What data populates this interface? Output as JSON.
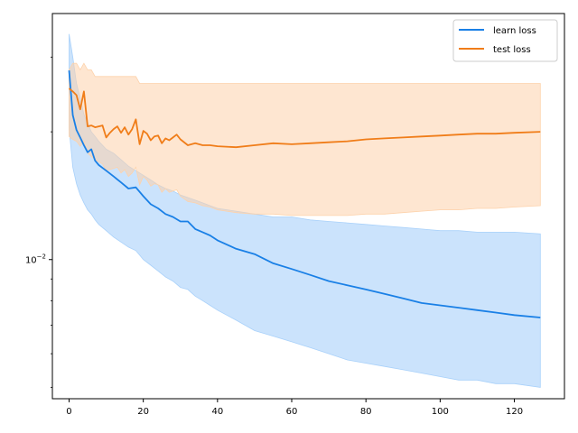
{
  "chart_data": {
    "type": "line",
    "title": "",
    "xlabel": "",
    "ylabel": "",
    "xlim": [
      -4.5,
      133.5
    ],
    "ylim": [
      0.0047,
      0.038
    ],
    "yscale": "log",
    "x_ticks": [
      0,
      20,
      40,
      60,
      80,
      100,
      120
    ],
    "x_tick_labels": [
      "0",
      "20",
      "40",
      "60",
      "80",
      "100",
      "120"
    ],
    "y_ticks": [
      0.01
    ],
    "y_tick_labels": [
      "10^{-2}"
    ],
    "legend": {
      "position": "top-right",
      "entries": [
        "learn loss",
        "test loss"
      ]
    },
    "grid": false,
    "series": [
      {
        "name": "learn loss",
        "color": "#1a80e6",
        "band_color": "#a9d1fa",
        "x": [
          0,
          1,
          2,
          3,
          4,
          5,
          6,
          7,
          8,
          10,
          12,
          14,
          16,
          18,
          20,
          22,
          24,
          26,
          28,
          30,
          32,
          34,
          36,
          38,
          40,
          45,
          50,
          55,
          60,
          65,
          70,
          75,
          80,
          85,
          90,
          95,
          100,
          105,
          110,
          115,
          120,
          127
        ],
        "mean": [
          0.0279,
          0.0219,
          0.0202,
          0.0194,
          0.0186,
          0.0179,
          0.0182,
          0.0171,
          0.0167,
          0.0162,
          0.0157,
          0.0152,
          0.0147,
          0.0148,
          0.0141,
          0.0135,
          0.0132,
          0.0128,
          0.0126,
          0.0123,
          0.0123,
          0.0118,
          0.0116,
          0.0114,
          0.0111,
          0.0106,
          0.0103,
          0.0098,
          0.0095,
          0.0092,
          0.0089,
          0.0087,
          0.0085,
          0.0083,
          0.0081,
          0.0079,
          0.0078,
          0.0077,
          0.0076,
          0.0075,
          0.0074,
          0.0073
        ],
        "upper": [
          0.034,
          0.03,
          0.026,
          0.024,
          0.022,
          0.021,
          0.02,
          0.0195,
          0.019,
          0.0182,
          0.0178,
          0.0172,
          0.0166,
          0.0162,
          0.0158,
          0.0154,
          0.015,
          0.0147,
          0.0145,
          0.0142,
          0.014,
          0.0138,
          0.0136,
          0.0134,
          0.0132,
          0.013,
          0.0128,
          0.0126,
          0.0126,
          0.0124,
          0.0123,
          0.0122,
          0.0121,
          0.012,
          0.0119,
          0.0118,
          0.0117,
          0.0117,
          0.0116,
          0.0116,
          0.0116,
          0.0115
        ],
        "lower": [
          0.0204,
          0.0165,
          0.0151,
          0.0142,
          0.0136,
          0.0131,
          0.0128,
          0.0124,
          0.0121,
          0.0117,
          0.0113,
          0.011,
          0.0107,
          0.0105,
          0.01,
          0.0097,
          0.0094,
          0.0091,
          0.0089,
          0.0086,
          0.0085,
          0.0082,
          0.008,
          0.0078,
          0.0076,
          0.0072,
          0.0068,
          0.0066,
          0.0064,
          0.0062,
          0.006,
          0.0058,
          0.0057,
          0.0056,
          0.0055,
          0.0054,
          0.0053,
          0.0052,
          0.0052,
          0.0051,
          0.0051,
          0.005
        ]
      },
      {
        "name": "test loss",
        "color": "#f07d19",
        "band_color": "#fdd2ab",
        "x": [
          0,
          1,
          2,
          3,
          4,
          5,
          6,
          7,
          8,
          9,
          10,
          11,
          12,
          13,
          14,
          15,
          16,
          17,
          18,
          19,
          20,
          21,
          22,
          23,
          24,
          25,
          26,
          27,
          28,
          29,
          30,
          32,
          34,
          36,
          38,
          40,
          45,
          50,
          55,
          60,
          65,
          70,
          75,
          80,
          85,
          90,
          95,
          100,
          105,
          110,
          115,
          120,
          127
        ],
        "mean": [
          0.0253,
          0.0249,
          0.0244,
          0.0226,
          0.0249,
          0.0206,
          0.0207,
          0.0205,
          0.0206,
          0.0207,
          0.0194,
          0.0199,
          0.0203,
          0.0206,
          0.0199,
          0.0205,
          0.0197,
          0.0203,
          0.0214,
          0.0187,
          0.0201,
          0.0198,
          0.0191,
          0.0195,
          0.0196,
          0.0188,
          0.0193,
          0.0191,
          0.0194,
          0.0197,
          0.0192,
          0.0186,
          0.0188,
          0.0186,
          0.0186,
          0.0185,
          0.0184,
          0.0186,
          0.0188,
          0.0187,
          0.0188,
          0.0189,
          0.019,
          0.0192,
          0.0193,
          0.0194,
          0.0195,
          0.0196,
          0.0197,
          0.0198,
          0.0198,
          0.0199,
          0.02
        ],
        "upper": [
          0.028,
          0.029,
          0.029,
          0.028,
          0.029,
          0.028,
          0.028,
          0.027,
          0.027,
          0.027,
          0.027,
          0.027,
          0.027,
          0.027,
          0.027,
          0.027,
          0.027,
          0.027,
          0.027,
          0.026,
          0.026,
          0.026,
          0.026,
          0.026,
          0.026,
          0.026,
          0.026,
          0.026,
          0.026,
          0.026,
          0.026,
          0.026,
          0.026,
          0.026,
          0.026,
          0.026,
          0.026,
          0.026,
          0.026,
          0.026,
          0.026,
          0.026,
          0.026,
          0.026,
          0.026,
          0.026,
          0.026,
          0.026,
          0.026,
          0.026,
          0.026,
          0.026,
          0.026
        ],
        "lower": [
          0.0195,
          0.0192,
          0.019,
          0.0185,
          0.019,
          0.0178,
          0.0175,
          0.0172,
          0.017,
          0.0168,
          0.0162,
          0.0163,
          0.0164,
          0.0165,
          0.016,
          0.0163,
          0.0157,
          0.016,
          0.0165,
          0.015,
          0.0157,
          0.0154,
          0.0149,
          0.0151,
          0.015,
          0.0144,
          0.0147,
          0.0144,
          0.0145,
          0.0146,
          0.0141,
          0.0137,
          0.0136,
          0.0134,
          0.0133,
          0.0131,
          0.0129,
          0.0128,
          0.0128,
          0.0127,
          0.0127,
          0.0127,
          0.0127,
          0.0128,
          0.0128,
          0.0129,
          0.013,
          0.0131,
          0.0131,
          0.0132,
          0.0132,
          0.0133,
          0.0134
        ]
      }
    ]
  }
}
